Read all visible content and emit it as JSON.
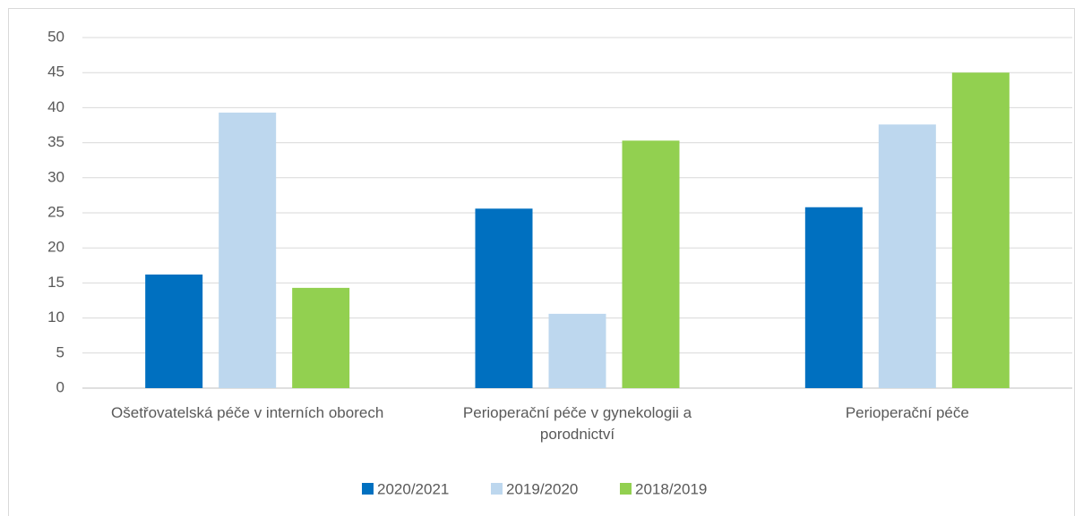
{
  "chart_data": {
    "type": "bar",
    "categories": [
      "Ošetřovatelská péče v interních oborech",
      "Perioperační péče v gynekologii a porodnictví",
      "Perioperační péče"
    ],
    "series": [
      {
        "name": "2020/2021",
        "color": "#0070c0",
        "values": [
          16.2,
          25.6,
          25.8
        ]
      },
      {
        "name": "2019/2020",
        "color": "#bdd7ee",
        "values": [
          39.3,
          10.6,
          37.6
        ]
      },
      {
        "name": "2018/2019",
        "color": "#92d050",
        "values": [
          14.3,
          35.3,
          45.0
        ]
      }
    ],
    "ylim": [
      0,
      50
    ],
    "yticks": [
      0,
      5,
      10,
      15,
      20,
      25,
      30,
      35,
      40,
      45,
      50
    ],
    "grid": true,
    "legend": "bottom"
  }
}
